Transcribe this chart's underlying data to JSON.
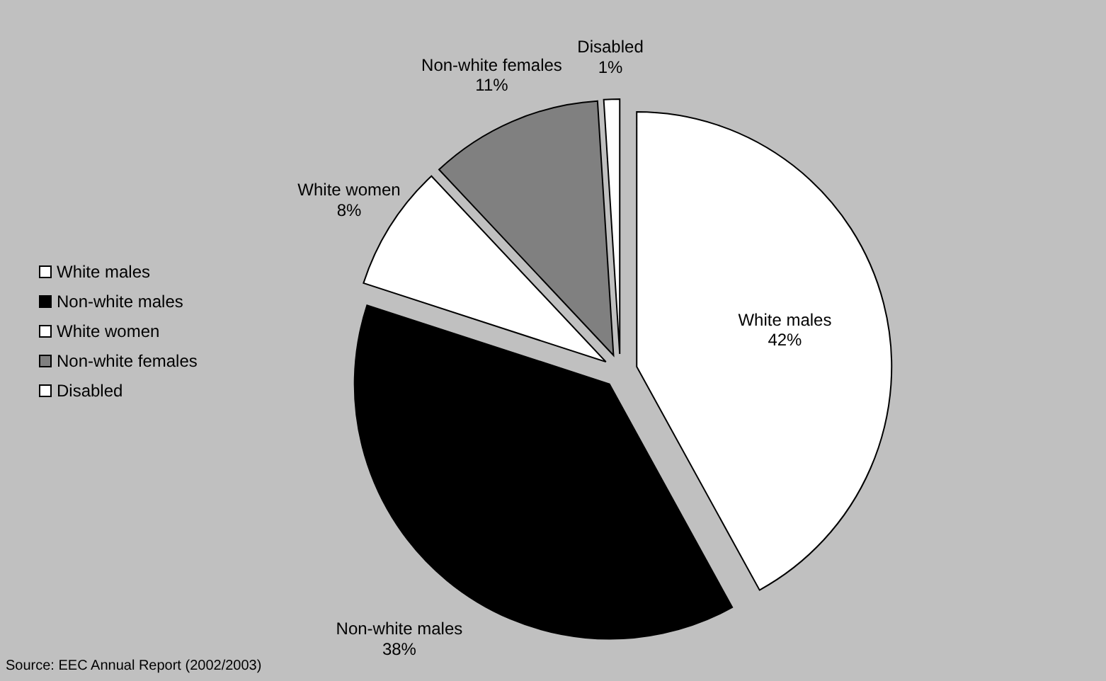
{
  "chart_data": {
    "type": "pie",
    "categories": [
      "White males",
      "Non-white males",
      "White women",
      "Non-white females",
      "Disabled"
    ],
    "values": [
      42,
      38,
      8,
      11,
      1
    ],
    "value_labels": [
      "42%",
      "38%",
      "8%",
      "11%",
      "1%"
    ],
    "colors": [
      "#ffffff",
      "#000000",
      "#ffffff",
      "#808080",
      "#ffffff"
    ],
    "data_labels": true,
    "legend": "left",
    "annotations": [
      "Source: EEC Annual Report (2002/2003)"
    ]
  }
}
